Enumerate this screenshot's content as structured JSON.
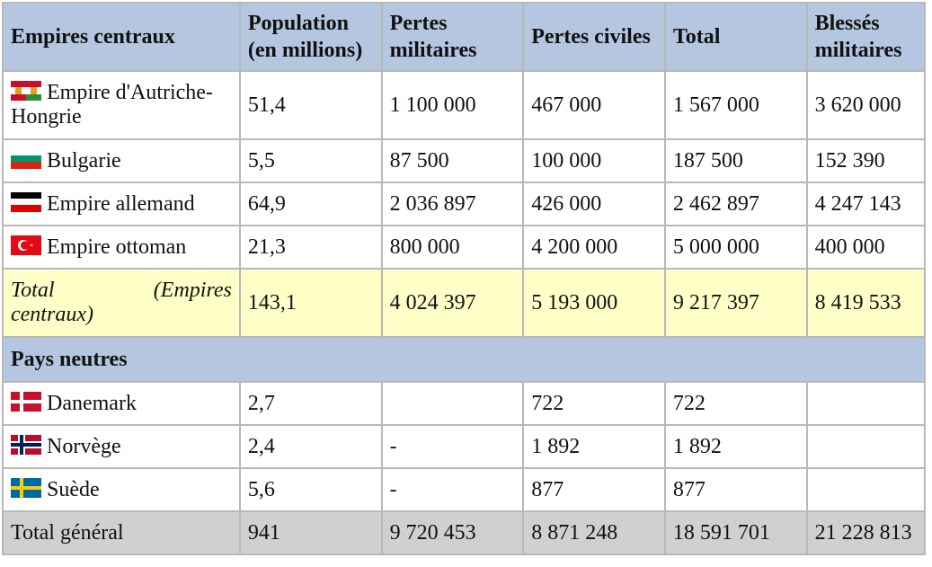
{
  "headers": [
    "Empires centraux",
    "Population (en millions)",
    "Pertes militaires",
    "Pertes civiles",
    "Total",
    "Blessés militaires"
  ],
  "central_rows": [
    {
      "country": "Empire d'Autriche-Hongrie",
      "flag": "austria-hungary-flag-icon",
      "population": "51,4",
      "military": "1 100 000",
      "civil": "467 000",
      "total": "1 567 000",
      "wounded": "3 620 000"
    },
    {
      "country": "Bulgarie",
      "flag": "bulgaria-flag-icon",
      "population": "5,5",
      "military": "87 500",
      "civil": "100 000",
      "total": "187 500",
      "wounded": "152 390"
    },
    {
      "country": "Empire allemand",
      "flag": "german-empire-flag-icon",
      "population": "64,9",
      "military": "2 036 897",
      "civil": "426 000",
      "total": "2 462 897",
      "wounded": "4 247 143"
    },
    {
      "country": "Empire ottoman",
      "flag": "ottoman-flag-icon",
      "population": "21,3",
      "military": "800 000",
      "civil": "4 200 000",
      "total": "5 000 000",
      "wounded": "400 000"
    }
  ],
  "central_total": {
    "label_a": "Total",
    "label_b": "(Empires",
    "label_c": "centraux)",
    "population": "143,1",
    "military": "4 024 397",
    "civil": "5 193 000",
    "total": "9 217 397",
    "wounded": "8 419 533"
  },
  "neutral_header": "Pays neutres",
  "neutral_rows": [
    {
      "country": "Danemark",
      "flag": "denmark-flag-icon",
      "population": "2,7",
      "military": "",
      "civil": "722",
      "total": "722",
      "wounded": ""
    },
    {
      "country": "Norvège",
      "flag": "norway-flag-icon",
      "population": "2,4",
      "military": "-",
      "civil": "1 892",
      "total": "1 892",
      "wounded": ""
    },
    {
      "country": "Suède",
      "flag": "sweden-flag-icon",
      "population": "5,6",
      "military": "-",
      "civil": "877",
      "total": "877",
      "wounded": ""
    }
  ],
  "grand_total": {
    "label": "Total général",
    "population": "941",
    "military": "9 720 453",
    "civil": "8 871 248",
    "total": "18 591 701",
    "wounded": "21 228 813"
  },
  "colors": {
    "header_bg": "#b4c6e0",
    "total_bg": "#ffffc8",
    "grand_bg": "#d0d0d0",
    "border": "#b8b8b8"
  }
}
